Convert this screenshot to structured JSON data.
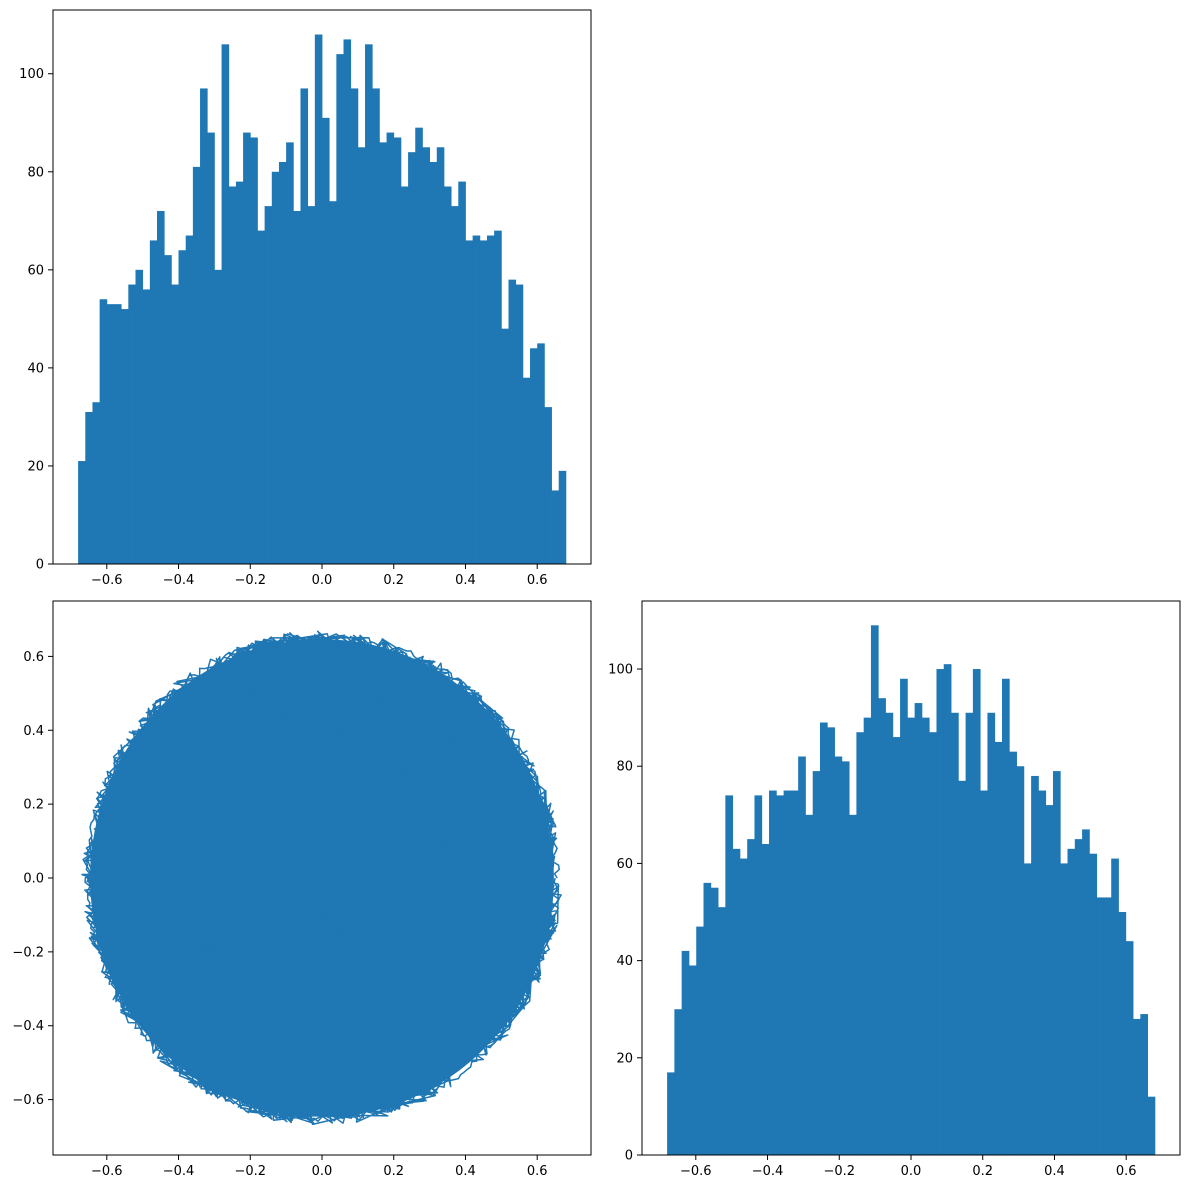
{
  "chart_data": [
    {
      "type": "bar",
      "role": "histogram",
      "xlim": [
        -0.75,
        0.75
      ],
      "ylim": [
        0,
        113
      ],
      "xticks": [
        -0.6,
        -0.4,
        -0.2,
        0.0,
        0.2,
        0.4,
        0.6
      ],
      "xtick_labels": [
        "−0.6",
        "−0.4",
        "−0.2",
        "0.0",
        "0.2",
        "0.4",
        "0.6"
      ],
      "yticks": [
        0,
        20,
        40,
        60,
        80,
        100
      ],
      "ytick_labels": [
        "0",
        "20",
        "40",
        "60",
        "80",
        "100"
      ],
      "bin_range": [
        -0.68,
        0.68
      ],
      "values": [
        21,
        31,
        33,
        54,
        53,
        53,
        52,
        57,
        60,
        56,
        66,
        72,
        63,
        57,
        64,
        67,
        81,
        97,
        88,
        60,
        106,
        77,
        78,
        88,
        87,
        68,
        73,
        80,
        82,
        86,
        72,
        97,
        73,
        108,
        91,
        74,
        104,
        107,
        97,
        85,
        106,
        97,
        86,
        88,
        87,
        77,
        84,
        89,
        85,
        82,
        85,
        77,
        73,
        78,
        66,
        67,
        66,
        67,
        68,
        48,
        58,
        57,
        38,
        44,
        45,
        32,
        15,
        19
      ],
      "color": "#1f77b4",
      "grid": false
    },
    {
      "type": "line",
      "role": "trajectory",
      "xlim": [
        -0.75,
        0.75
      ],
      "ylim": [
        -0.75,
        0.75
      ],
      "xticks": [
        -0.6,
        -0.4,
        -0.2,
        0.0,
        0.2,
        0.4,
        0.6
      ],
      "xtick_labels": [
        "−0.6",
        "−0.4",
        "−0.2",
        "0.0",
        "0.2",
        "0.4",
        "0.6"
      ],
      "yticks": [
        -0.6,
        -0.4,
        -0.2,
        0.0,
        0.2,
        0.4,
        0.6
      ],
      "ytick_labels": [
        "−0.6",
        "−0.4",
        "−0.2",
        "0.0",
        "0.2",
        "0.4",
        "0.6"
      ],
      "shape": "filled disk of random walk points",
      "radius": 0.67,
      "color": "#1f77b4",
      "grid": false
    },
    {
      "type": "bar",
      "role": "histogram",
      "xlim": [
        -0.75,
        0.75
      ],
      "ylim": [
        0,
        114
      ],
      "xticks": [
        -0.6,
        -0.4,
        -0.2,
        0.0,
        0.2,
        0.4,
        0.6
      ],
      "xtick_labels": [
        "−0.6",
        "−0.4",
        "−0.2",
        "0.0",
        "0.2",
        "0.4",
        "0.6"
      ],
      "yticks": [
        0,
        20,
        40,
        60,
        80,
        100
      ],
      "ytick_labels": [
        "0",
        "20",
        "40",
        "60",
        "80",
        "100"
      ],
      "bin_range": [
        -0.68,
        0.68
      ],
      "values": [
        17,
        30,
        42,
        39,
        47,
        56,
        55,
        51,
        74,
        63,
        61,
        65,
        74,
        64,
        75,
        74,
        75,
        75,
        82,
        70,
        79,
        89,
        88,
        82,
        81,
        70,
        87,
        90,
        109,
        94,
        91,
        86,
        98,
        90,
        93,
        90,
        87,
        100,
        101,
        91,
        77,
        91,
        100,
        75,
        91,
        85,
        98,
        83,
        80,
        60,
        78,
        75,
        72,
        79,
        60,
        63,
        65,
        67,
        62,
        53,
        53,
        61,
        50,
        44,
        28,
        29,
        12
      ],
      "color": "#1f77b4",
      "grid": false
    }
  ]
}
